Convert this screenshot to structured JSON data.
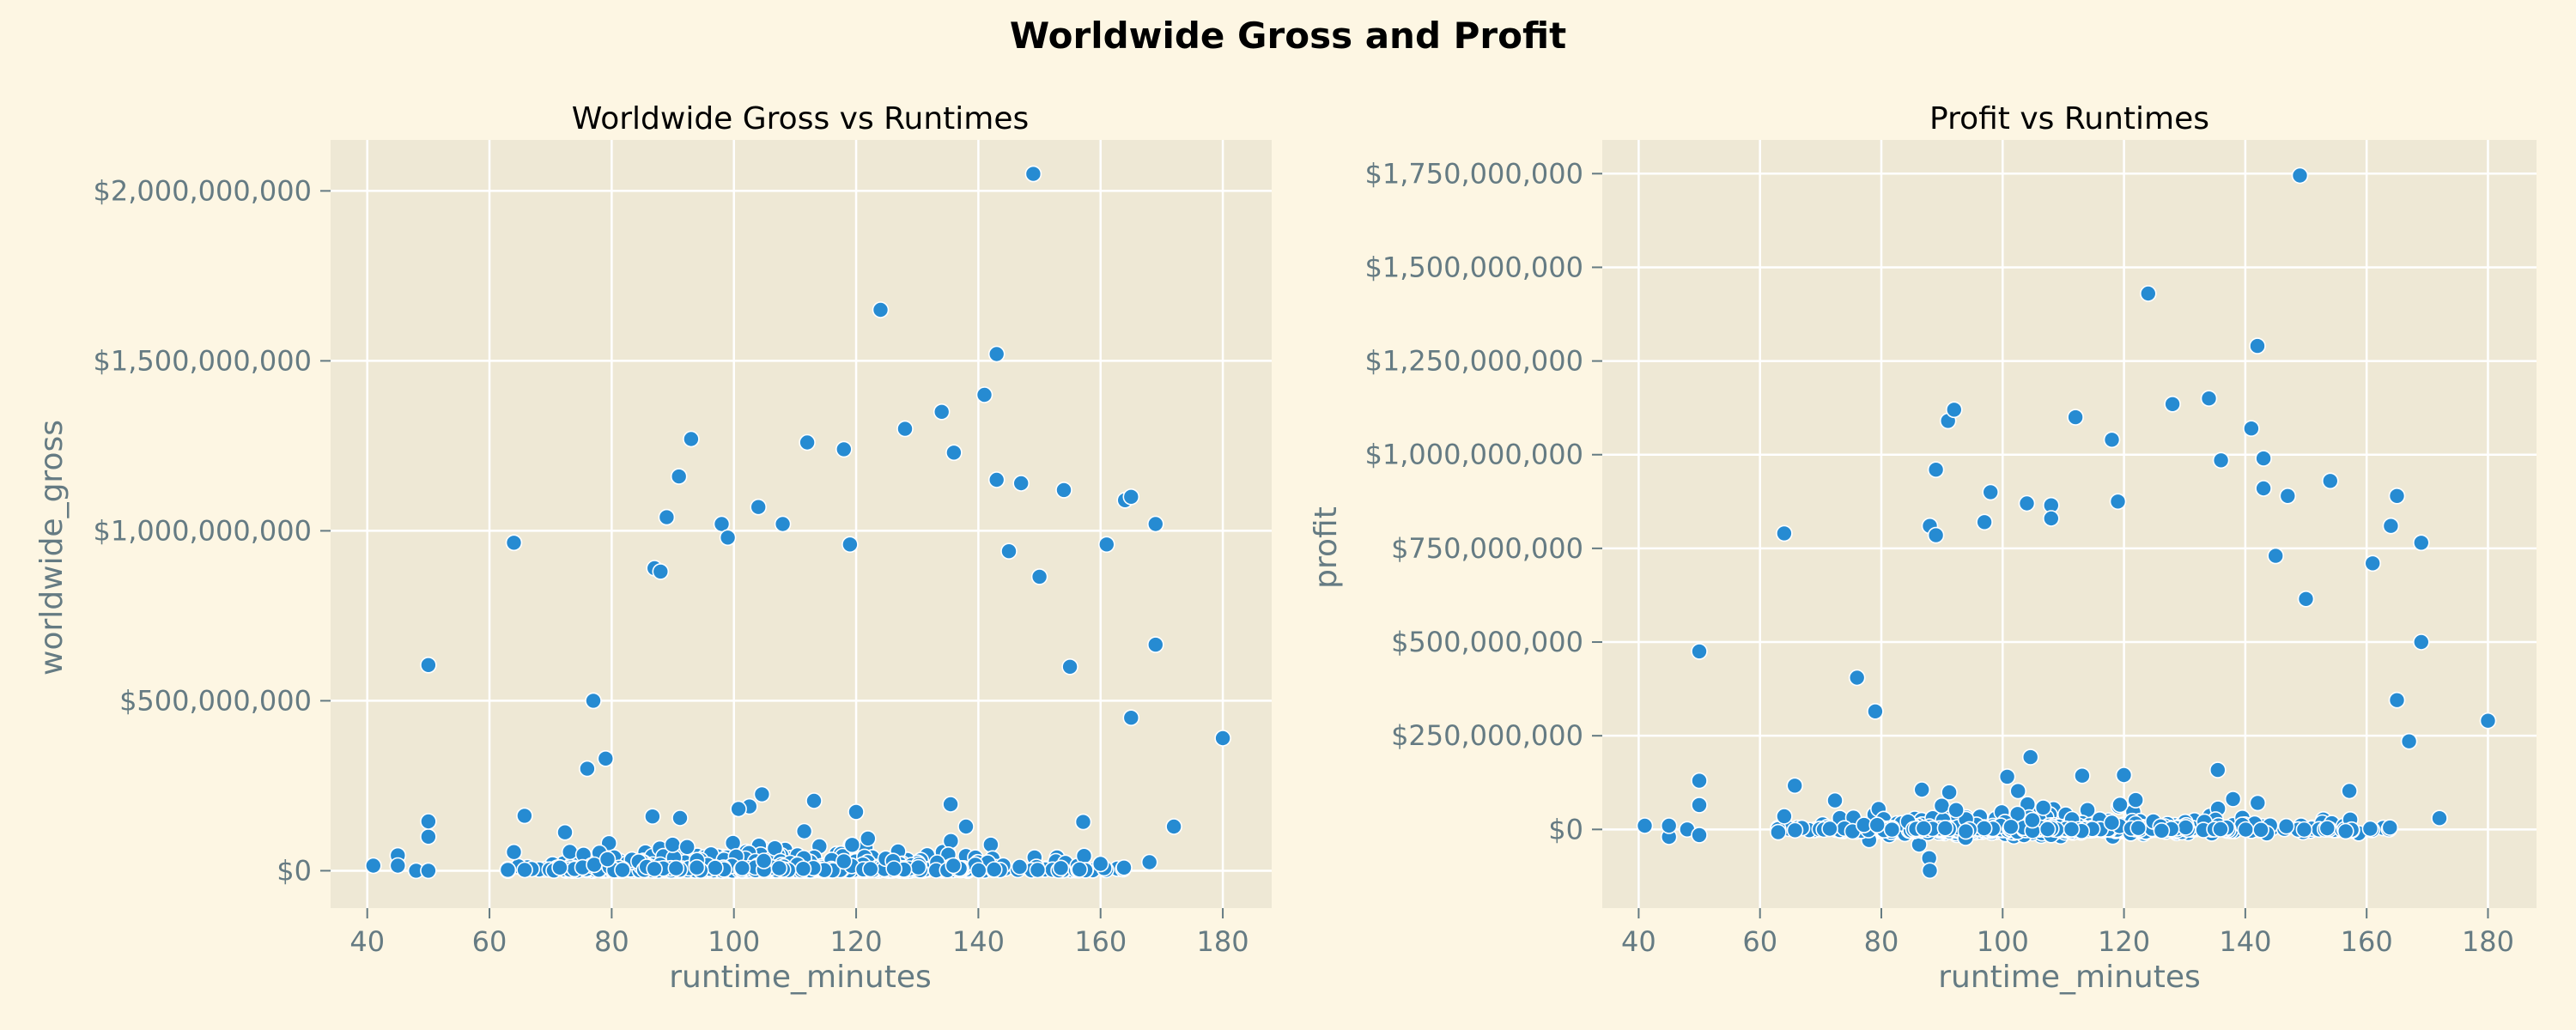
{
  "figure": {
    "title": "Worldwide Gross and Profit"
  },
  "colors": {
    "figure_bg": "#fdf6e3",
    "axes_bg": "#eee8d5",
    "grid": "#ffffff",
    "marker": "#268bd2",
    "marker_edge": "#ffffff",
    "tick_text": "#657b83"
  },
  "chart_data": [
    {
      "type": "scatter",
      "title": "Worldwide Gross vs Runtimes",
      "xlabel": "runtime_minutes",
      "ylabel": "worldwide_gross",
      "xlim": [
        34,
        188
      ],
      "ylim": [
        -110000000,
        2150000000
      ],
      "xticks": [
        40,
        60,
        80,
        100,
        120,
        140,
        160,
        180
      ],
      "xtick_labels": [
        "40",
        "60",
        "80",
        "100",
        "120",
        "140",
        "160",
        "180"
      ],
      "yticks": [
        0,
        500000000,
        1000000000,
        1500000000,
        2000000000
      ],
      "ytick_labels": [
        "$0",
        "$500,000,000",
        "$1,000,000,000",
        "$1,500,000,000",
        "$2,000,000,000"
      ],
      "grid": true,
      "legend": "none",
      "notable_points": [
        [
          41,
          15000000
        ],
        [
          45,
          45000000
        ],
        [
          45,
          15000000
        ],
        [
          48,
          0
        ],
        [
          50,
          0
        ],
        [
          50,
          100000000
        ],
        [
          50,
          145000000
        ],
        [
          50,
          605000000
        ],
        [
          64,
          965000000
        ],
        [
          64,
          55000000
        ],
        [
          76,
          300000000
        ],
        [
          77,
          500000000
        ],
        [
          79,
          330000000
        ],
        [
          87,
          890000000
        ],
        [
          88,
          880000000
        ],
        [
          89,
          1040000000
        ],
        [
          91,
          1160000000
        ],
        [
          93,
          1270000000
        ],
        [
          98,
          1020000000
        ],
        [
          99,
          980000000
        ],
        [
          104,
          1070000000
        ],
        [
          108,
          1020000000
        ],
        [
          112,
          1260000000
        ],
        [
          118,
          1240000000
        ],
        [
          119,
          960000000
        ],
        [
          124,
          1650000000
        ],
        [
          128,
          1300000000
        ],
        [
          134,
          1350000000
        ],
        [
          136,
          1230000000
        ],
        [
          141,
          1400000000
        ],
        [
          143,
          1520000000
        ],
        [
          143,
          1150000000
        ],
        [
          147,
          1140000000
        ],
        [
          149,
          2050000000
        ],
        [
          154,
          1120000000
        ],
        [
          161,
          960000000
        ],
        [
          164,
          1090000000
        ],
        [
          165,
          1100000000
        ],
        [
          169,
          1020000000
        ],
        [
          169,
          665000000
        ],
        [
          165,
          450000000
        ],
        [
          180,
          390000000
        ],
        [
          172,
          130000000
        ],
        [
          168,
          25000000
        ],
        [
          160,
          20000000
        ],
        [
          155,
          600000000
        ],
        [
          150,
          865000000
        ],
        [
          145,
          940000000
        ]
      ]
    },
    {
      "type": "scatter",
      "title": "Profit vs Runtimes",
      "xlabel": "runtime_minutes",
      "ylabel": "profit",
      "xlim": [
        34,
        188
      ],
      "ylim": [
        -210000000,
        1840000000
      ],
      "xticks": [
        40,
        60,
        80,
        100,
        120,
        140,
        160,
        180
      ],
      "xtick_labels": [
        "40",
        "60",
        "80",
        "100",
        "120",
        "140",
        "160",
        "180"
      ],
      "yticks": [
        0,
        250000000,
        500000000,
        750000000,
        1000000000,
        1250000000,
        1500000000,
        1750000000
      ],
      "ytick_labels": [
        "$0",
        "$250,000,000",
        "$500,000,000",
        "$750,000,000",
        "$1,000,000,000",
        "$1,250,000,000",
        "$1,500,000,000",
        "$1,750,000,000"
      ],
      "grid": true,
      "legend": "none",
      "notable_points": [
        [
          41,
          10000000
        ],
        [
          45,
          -20000000
        ],
        [
          45,
          10000000
        ],
        [
          48,
          0
        ],
        [
          50,
          -15000000
        ],
        [
          50,
          65000000
        ],
        [
          50,
          130000000
        ],
        [
          50,
          475000000
        ],
        [
          64,
          790000000
        ],
        [
          64,
          35000000
        ],
        [
          76,
          405000000
        ],
        [
          79,
          315000000
        ],
        [
          88,
          -110000000
        ],
        [
          88,
          810000000
        ],
        [
          89,
          785000000
        ],
        [
          89,
          960000000
        ],
        [
          91,
          1090000000
        ],
        [
          92,
          1120000000
        ],
        [
          98,
          900000000
        ],
        [
          97,
          820000000
        ],
        [
          104,
          870000000
        ],
        [
          108,
          865000000
        ],
        [
          108,
          830000000
        ],
        [
          112,
          1100000000
        ],
        [
          118,
          1040000000
        ],
        [
          119,
          875000000
        ],
        [
          124,
          1430000000
        ],
        [
          128,
          1135000000
        ],
        [
          134,
          1150000000
        ],
        [
          136,
          985000000
        ],
        [
          141,
          1070000000
        ],
        [
          142,
          1290000000
        ],
        [
          143,
          990000000
        ],
        [
          143,
          910000000
        ],
        [
          147,
          890000000
        ],
        [
          149,
          1745000000
        ],
        [
          154,
          930000000
        ],
        [
          161,
          710000000
        ],
        [
          164,
          810000000
        ],
        [
          165,
          890000000
        ],
        [
          165,
          345000000
        ],
        [
          169,
          765000000
        ],
        [
          169,
          500000000
        ],
        [
          167,
          235000000
        ],
        [
          180,
          290000000
        ],
        [
          172,
          30000000
        ],
        [
          150,
          615000000
        ],
        [
          145,
          730000000
        ]
      ]
    }
  ]
}
